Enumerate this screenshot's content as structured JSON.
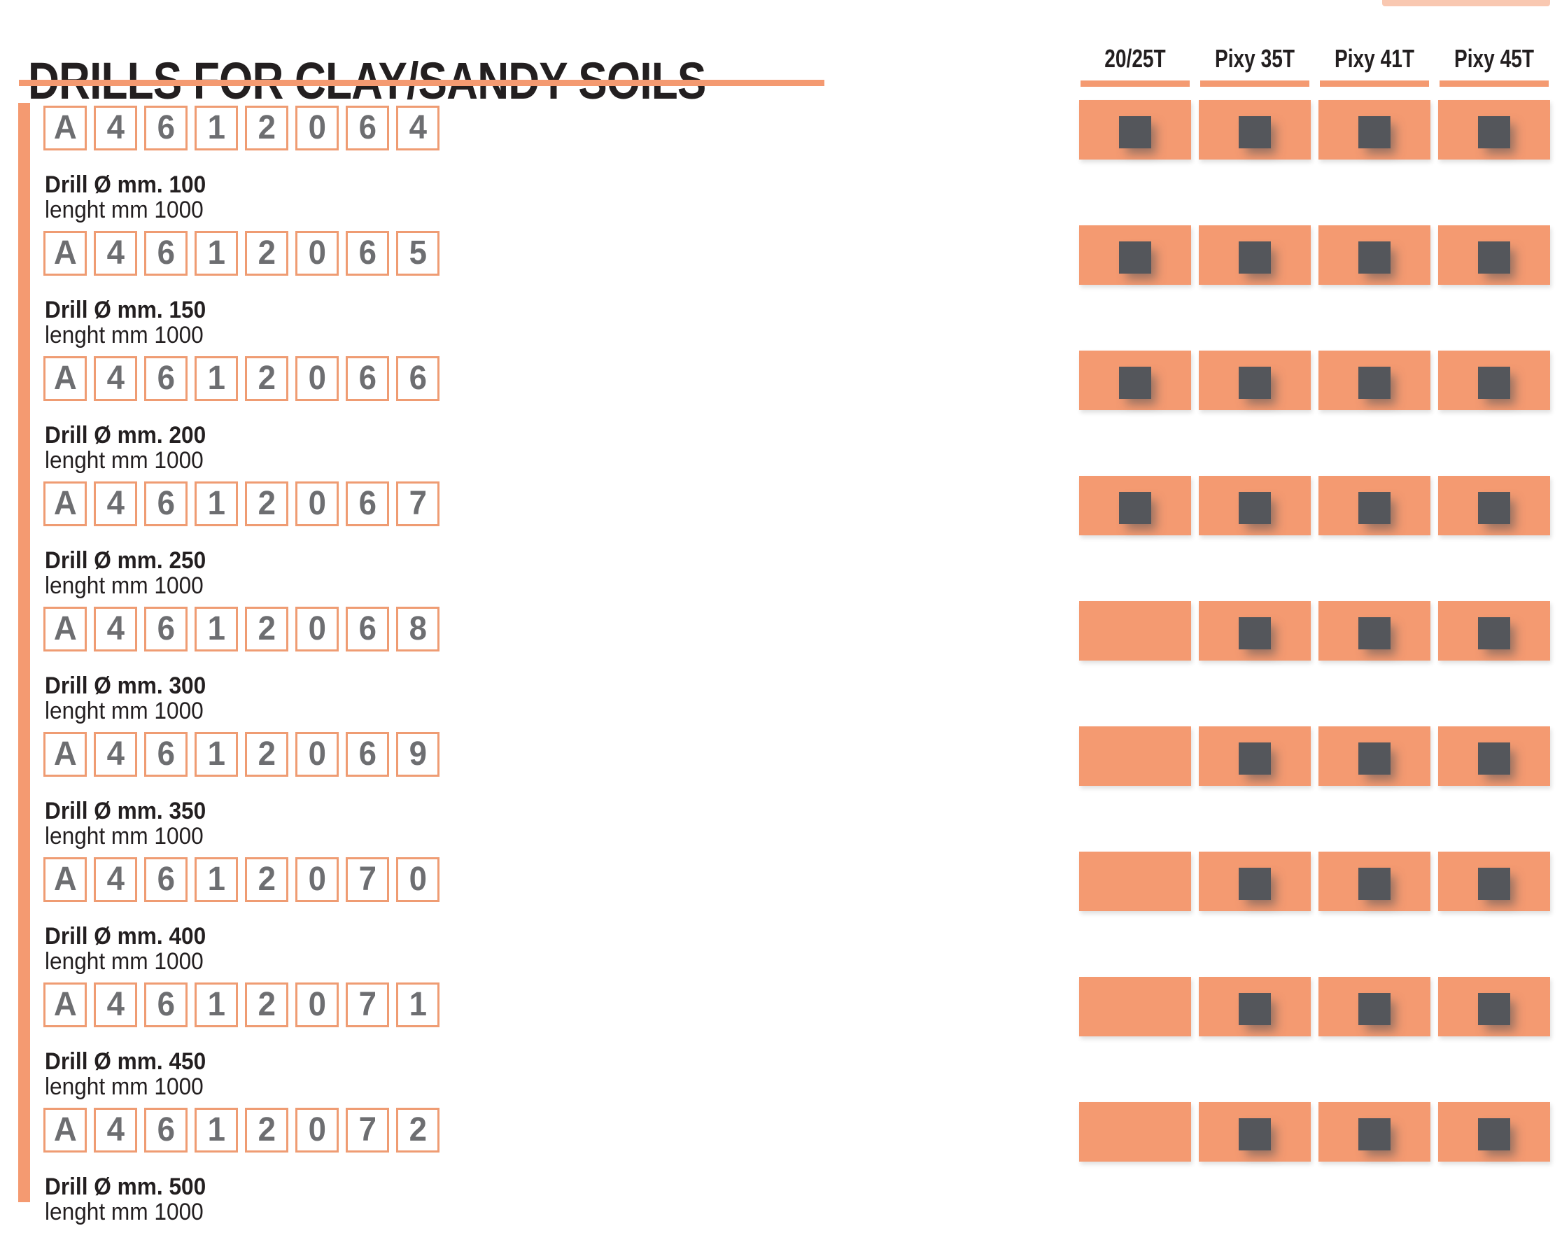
{
  "title": "DRILLS FOR CLAY/SANDY SOILS",
  "machine_columns": [
    "20/25T",
    "Pixy 35T",
    "Pixy 41T",
    "Pixy 45T"
  ],
  "products": [
    {
      "code": "A4612064",
      "diameter_label": "Drill Ø mm. 100",
      "length_label": "lenght mm 1000",
      "compatibility": [
        true,
        true,
        true,
        true
      ]
    },
    {
      "code": "A4612065",
      "diameter_label": "Drill Ø mm. 150",
      "length_label": "lenght mm 1000",
      "compatibility": [
        true,
        true,
        true,
        true
      ]
    },
    {
      "code": "A4612066",
      "diameter_label": "Drill Ø mm. 200",
      "length_label": "lenght mm 1000",
      "compatibility": [
        true,
        true,
        true,
        true
      ]
    },
    {
      "code": "A4612067",
      "diameter_label": "Drill Ø mm. 250",
      "length_label": "lenght mm 1000",
      "compatibility": [
        true,
        true,
        true,
        true
      ]
    },
    {
      "code": "A4612068",
      "diameter_label": "Drill Ø mm. 300",
      "length_label": "lenght mm 1000",
      "compatibility": [
        false,
        true,
        true,
        true
      ]
    },
    {
      "code": "A4612069",
      "diameter_label": "Drill Ø mm. 350",
      "length_label": "lenght mm 1000",
      "compatibility": [
        false,
        true,
        true,
        true
      ]
    },
    {
      "code": "A4612070",
      "diameter_label": "Drill Ø mm. 400",
      "length_label": "lenght mm 1000",
      "compatibility": [
        false,
        true,
        true,
        true
      ]
    },
    {
      "code": "A4612071",
      "diameter_label": "Drill Ø mm. 450",
      "length_label": "lenght mm 1000",
      "compatibility": [
        false,
        true,
        true,
        true
      ]
    },
    {
      "code": "A4612072",
      "diameter_label": "Drill Ø mm. 500",
      "length_label": "lenght mm 1000",
      "compatibility": [
        false,
        true,
        true,
        true
      ]
    }
  ],
  "colors": {
    "accent_orange": "#F49A71",
    "code_box_border": "#EF9C73",
    "marker_dark": "#54565B",
    "code_digit_gray": "#6D6E71",
    "text_black": "#231F20"
  }
}
